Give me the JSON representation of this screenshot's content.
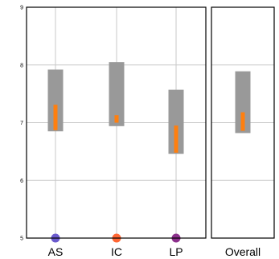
{
  "chart_data": {
    "type": "range-bar",
    "ylim": [
      5,
      9
    ],
    "yticks": [
      5,
      6,
      7,
      8,
      9
    ],
    "grid": true,
    "range_color": "#999999",
    "inner_color": "#ff7f0e",
    "panels": [
      {
        "categories": [
          "AS",
          "IC",
          "LP"
        ],
        "marker_colors": [
          "#6a5acd",
          "#ff6633",
          "#8b2f8b"
        ],
        "ranges": [
          [
            6.85,
            7.92
          ],
          [
            6.94,
            8.05
          ],
          [
            6.46,
            7.57
          ]
        ],
        "inner_ranges": [
          [
            6.87,
            7.31
          ],
          [
            7.0,
            7.13
          ],
          [
            6.48,
            6.95
          ]
        ]
      },
      {
        "categories": [
          "Overall"
        ],
        "marker_colors": [
          null
        ],
        "ranges": [
          [
            6.82,
            7.89
          ]
        ],
        "inner_ranges": [
          [
            6.86,
            7.18
          ]
        ]
      }
    ]
  }
}
